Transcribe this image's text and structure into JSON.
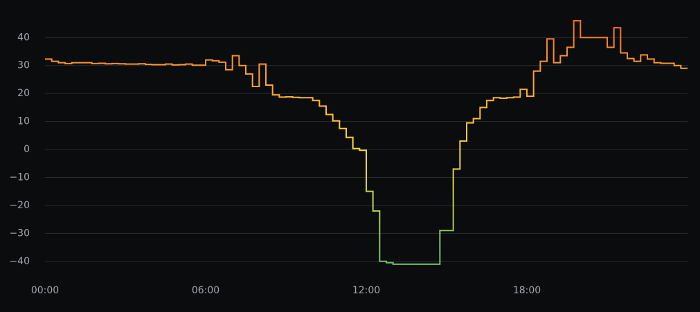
{
  "chart_data": {
    "type": "line",
    "step": true,
    "x": [
      "00:00",
      "00:15",
      "00:30",
      "00:45",
      "01:00",
      "01:15",
      "01:30",
      "01:45",
      "02:00",
      "02:15",
      "02:30",
      "02:45",
      "03:00",
      "03:15",
      "03:30",
      "03:45",
      "04:00",
      "04:15",
      "04:30",
      "04:45",
      "05:00",
      "05:15",
      "05:30",
      "05:45",
      "06:00",
      "06:15",
      "06:30",
      "06:45",
      "07:00",
      "07:15",
      "07:30",
      "07:45",
      "08:00",
      "08:15",
      "08:30",
      "08:45",
      "09:00",
      "09:15",
      "09:30",
      "09:45",
      "10:00",
      "10:15",
      "10:30",
      "10:45",
      "11:00",
      "11:15",
      "11:30",
      "11:45",
      "12:00",
      "12:15",
      "12:30",
      "12:45",
      "13:00",
      "13:15",
      "13:30",
      "13:45",
      "14:00",
      "14:15",
      "14:30",
      "14:45",
      "15:00",
      "15:15",
      "15:30",
      "15:45",
      "16:00",
      "16:15",
      "16:30",
      "16:45",
      "17:00",
      "17:15",
      "17:30",
      "17:45",
      "18:00",
      "18:15",
      "18:30",
      "18:45",
      "19:00",
      "19:15",
      "19:30",
      "19:45",
      "20:00",
      "20:15",
      "20:30",
      "20:45",
      "21:00",
      "21:15",
      "21:30",
      "21:45",
      "22:00",
      "22:15",
      "22:30",
      "22:45",
      "23:00",
      "23:15",
      "23:30",
      "23:45"
    ],
    "series": [
      {
        "values": [
          32.3,
          31.5,
          31,
          30.7,
          31,
          31,
          31,
          30.7,
          30.8,
          30.6,
          30.7,
          30.6,
          30.5,
          30.5,
          30.6,
          30.4,
          30.3,
          30.3,
          30.5,
          30.2,
          30.3,
          30.5,
          30.1,
          30.1,
          32,
          31.7,
          31.2,
          28.5,
          33.5,
          30,
          27,
          22.5,
          30.5,
          23,
          19.5,
          18.7,
          18.8,
          18.6,
          18.5,
          18.5,
          17.5,
          15.5,
          12.5,
          10.2,
          7.5,
          4.3,
          0.3,
          -0.3,
          -15,
          -22,
          -40,
          -40.5,
          -41,
          -41,
          -41,
          -41,
          -41,
          -41,
          -41,
          -29,
          -29,
          -7,
          3,
          9.5,
          11,
          15,
          17.5,
          18.5,
          18.3,
          18.5,
          18.7,
          21.5,
          19,
          28,
          31.5,
          39.5,
          31,
          33.5,
          36.5,
          46,
          40,
          40,
          40,
          40,
          36.5,
          43.5,
          34.5,
          32.5,
          31.5,
          33.8,
          32.3,
          31,
          30.8,
          30.8,
          30,
          29
        ]
      }
    ],
    "gradient": [
      {
        "value": -40,
        "color": "#73bf69"
      },
      {
        "value": 0,
        "color": "#fade2a"
      },
      {
        "value": 30,
        "color": "#ff9830"
      },
      {
        "value": 45,
        "color": "#f2711c"
      }
    ],
    "xlim": [
      "00:00",
      "24:00"
    ],
    "xticks": [
      "00:00",
      "06:00",
      "12:00",
      "18:00"
    ],
    "ylim": [
      -45,
      46
    ],
    "yticks": [
      {
        "value": -40,
        "label": "−40"
      },
      {
        "value": -30,
        "label": "−30"
      },
      {
        "value": -20,
        "label": "−20"
      },
      {
        "value": -10,
        "label": "−10"
      },
      0,
      10,
      20,
      30,
      40
    ],
    "grid": true
  }
}
